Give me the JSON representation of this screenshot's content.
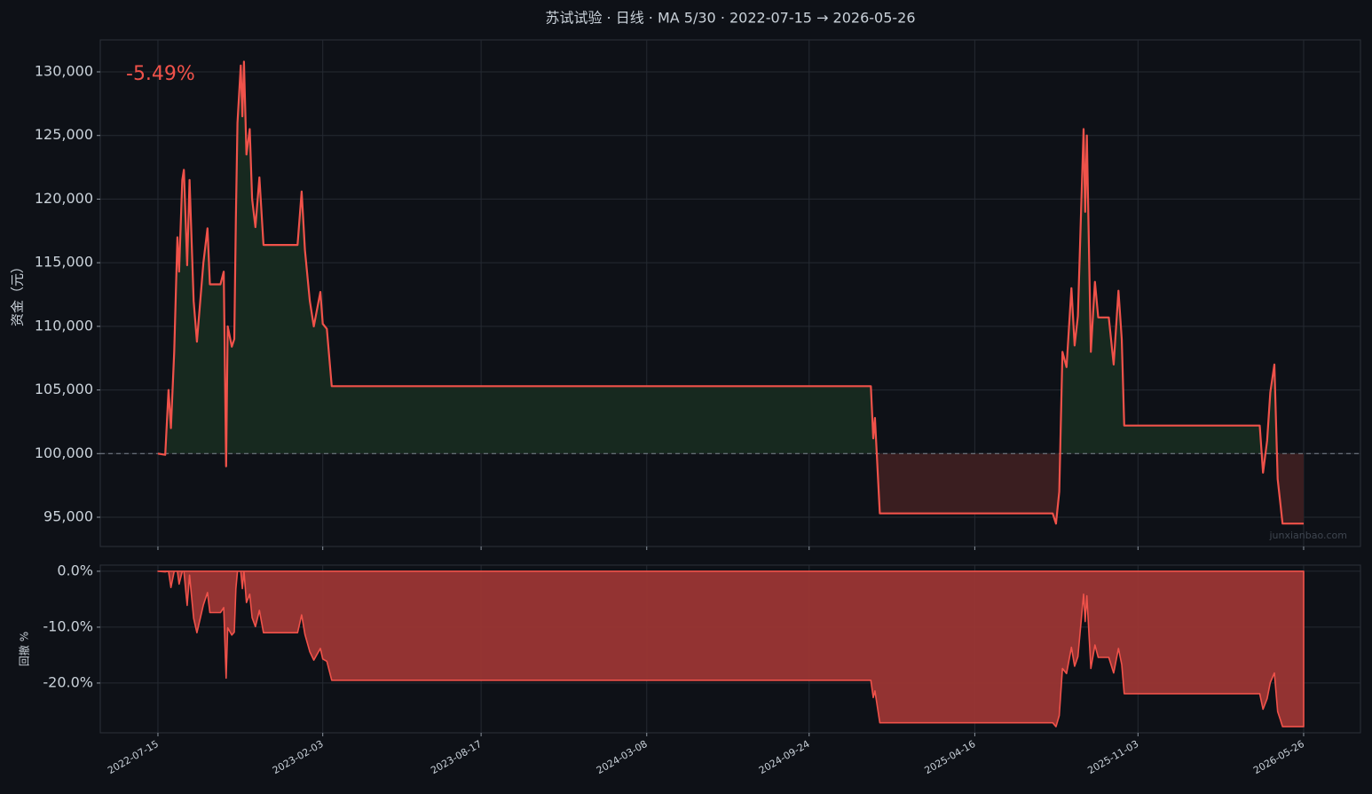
{
  "chart_data": [
    {
      "type": "line",
      "title": "苏试试验 · 日线 · MA 5/30 · 2022-07-15 → 2026-05-26",
      "ylabel": "资金（元）",
      "annotation": "-5.49%",
      "watermark": "junxianbao.com",
      "baseline": 100000,
      "color": "#f0524a",
      "fill_above": "#17291f",
      "fill_below": "#3a1e20",
      "grid": true,
      "xlim": [
        "2022-05-05",
        "2026-08-04"
      ],
      "xticks": [
        "2022-07-15",
        "2023-02-03",
        "2023-08-17",
        "2024-03-08",
        "2024-09-24",
        "2025-04-16",
        "2025-11-03",
        "2026-05-26"
      ],
      "ylim": [
        92700,
        132510
      ],
      "yticks": [
        {
          "value": 95000,
          "label": "95,000"
        },
        {
          "value": 100000,
          "label": "100,000"
        },
        {
          "value": 105000,
          "label": "105,000"
        },
        {
          "value": 110000,
          "label": "110,000"
        },
        {
          "value": 115000,
          "label": "115,000"
        },
        {
          "value": 120000,
          "label": "120,000"
        },
        {
          "value": 125000,
          "label": "125,000"
        },
        {
          "value": 130000,
          "label": "130,000"
        }
      ],
      "x": [
        "2022-07-15",
        "2022-07-24",
        "2022-07-28",
        "2022-07-31",
        "2022-08-04",
        "2022-08-08",
        "2022-08-10",
        "2022-08-14",
        "2022-08-16",
        "2022-08-20",
        "2022-08-23",
        "2022-08-28",
        "2022-09-01",
        "2022-09-09",
        "2022-09-14",
        "2022-09-17",
        "2022-09-30",
        "2022-10-04",
        "2022-10-07",
        "2022-10-09",
        "2022-10-14",
        "2022-10-17",
        "2022-10-19",
        "2022-10-21",
        "2022-10-25",
        "2022-10-27",
        "2022-10-29",
        "2022-11-01",
        "2022-11-05",
        "2022-11-08",
        "2022-11-12",
        "2022-11-17",
        "2022-11-22",
        "2023-01-03",
        "2023-01-08",
        "2023-01-12",
        "2023-01-18",
        "2023-01-23",
        "2023-01-31",
        "2023-02-03",
        "2023-02-08",
        "2023-02-14",
        "2024-12-09",
        "2024-12-12",
        "2024-12-14",
        "2024-12-20",
        "2025-07-21",
        "2025-07-25",
        "2025-07-29",
        "2025-08-02",
        "2025-08-07",
        "2025-08-13",
        "2025-08-17",
        "2025-08-21",
        "2025-08-28",
        "2025-08-30",
        "2025-09-01",
        "2025-09-06",
        "2025-09-11",
        "2025-09-15",
        "2025-09-28",
        "2025-10-04",
        "2025-10-10",
        "2025-10-14",
        "2025-10-17",
        "2026-04-02",
        "2026-04-06",
        "2026-04-11",
        "2026-04-15",
        "2026-04-20",
        "2026-04-24",
        "2026-04-27",
        "2026-04-30",
        "2026-05-26"
      ],
      "values": [
        100000,
        99900,
        105000,
        102000,
        108000,
        117000,
        114300,
        121500,
        122300,
        114800,
        121500,
        112000,
        108800,
        115000,
        117700,
        113300,
        113300,
        114300,
        99000,
        110000,
        108400,
        109000,
        118500,
        126000,
        130500,
        126500,
        130800,
        123500,
        125500,
        120000,
        117800,
        121700,
        116400,
        116400,
        120600,
        116000,
        112000,
        110000,
        112700,
        110200,
        109800,
        105300,
        105300,
        101200,
        102800,
        95300,
        95300,
        94500,
        97000,
        108000,
        106800,
        113000,
        108500,
        110800,
        125500,
        119000,
        125000,
        108000,
        113500,
        110700,
        110700,
        107000,
        112800,
        109000,
        102200,
        102200,
        98500,
        101000,
        104800,
        107000,
        98000,
        96300,
        94500,
        94500
      ]
    },
    {
      "type": "area",
      "ylabel": "回撤 %",
      "color": "#f0524a",
      "fill": "#9b3634",
      "grid": true,
      "xlim": [
        "2022-05-05",
        "2026-08-04"
      ],
      "xticks": [
        "2022-07-15",
        "2023-02-03",
        "2023-08-17",
        "2024-03-08",
        "2024-09-24",
        "2025-04-16",
        "2025-11-03",
        "2026-05-26"
      ],
      "ylim": [
        -28.9,
        1.1
      ],
      "yticks": [
        {
          "value": -20,
          "label": "-20.0%"
        },
        {
          "value": -10,
          "label": "-10.0%"
        },
        {
          "value": 0,
          "label": "0.0%"
        }
      ],
      "x": [
        "2022-07-15",
        "2022-07-24",
        "2022-07-28",
        "2022-07-31",
        "2022-08-04",
        "2022-08-08",
        "2022-08-10",
        "2022-08-14",
        "2022-08-16",
        "2022-08-20",
        "2022-08-23",
        "2022-08-28",
        "2022-09-01",
        "2022-09-09",
        "2022-09-14",
        "2022-09-17",
        "2022-09-30",
        "2022-10-04",
        "2022-10-07",
        "2022-10-09",
        "2022-10-14",
        "2022-10-17",
        "2022-10-19",
        "2022-10-21",
        "2022-10-25",
        "2022-10-27",
        "2022-10-29",
        "2022-11-01",
        "2022-11-05",
        "2022-11-08",
        "2022-11-12",
        "2022-11-17",
        "2022-11-22",
        "2023-01-03",
        "2023-01-08",
        "2023-01-12",
        "2023-01-18",
        "2023-01-23",
        "2023-01-31",
        "2023-02-03",
        "2023-02-08",
        "2023-02-14",
        "2024-12-09",
        "2024-12-12",
        "2024-12-14",
        "2024-12-20",
        "2025-07-21",
        "2025-07-25",
        "2025-07-29",
        "2025-08-02",
        "2025-08-07",
        "2025-08-13",
        "2025-08-17",
        "2025-08-21",
        "2025-08-28",
        "2025-08-30",
        "2025-09-01",
        "2025-09-06",
        "2025-09-11",
        "2025-09-15",
        "2025-09-28",
        "2025-10-04",
        "2025-10-10",
        "2025-10-14",
        "2025-10-17",
        "2026-04-02",
        "2026-04-06",
        "2026-04-11",
        "2026-04-15",
        "2026-04-20",
        "2026-04-24",
        "2026-04-27",
        "2026-04-30",
        "2026-05-26"
      ],
      "values": [
        0,
        -0.1,
        0,
        -2.9,
        0,
        0,
        -2.3,
        0,
        0,
        -6.1,
        -0.7,
        -8.4,
        -11.0,
        -6.0,
        -3.8,
        -7.4,
        -7.4,
        -6.5,
        -19.1,
        -10.1,
        -11.4,
        -10.9,
        -3.1,
        0,
        0,
        -3.1,
        0,
        -5.6,
        -4.1,
        -8.3,
        -9.9,
        -7.0,
        -11.0,
        -11.0,
        -7.8,
        -11.3,
        -14.4,
        -15.9,
        -13.8,
        -15.7,
        -16.1,
        -19.5,
        -19.5,
        -22.6,
        -21.4,
        -27.1,
        -27.1,
        -27.8,
        -25.8,
        -17.4,
        -18.3,
        -13.6,
        -17.0,
        -15.3,
        -4.1,
        -9.0,
        -4.4,
        -17.4,
        -13.2,
        -15.4,
        -15.4,
        -18.2,
        -13.8,
        -16.7,
        -21.9,
        -21.9,
        -24.7,
        -22.8,
        -19.9,
        -18.2,
        -25.1,
        -26.4,
        -27.8,
        -27.8
      ]
    }
  ]
}
